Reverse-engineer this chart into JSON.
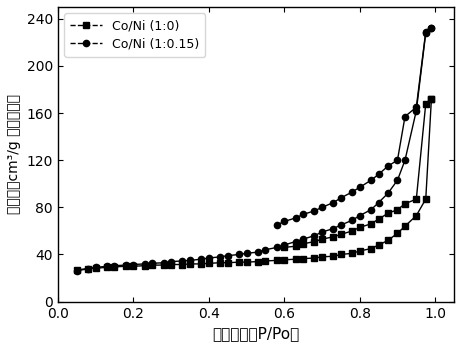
{
  "title": "",
  "xlabel": "相对压力（P/Po）",
  "ylabel": "吸附量（cm³/g 标准状态）",
  "xlim": [
    0.0,
    1.05
  ],
  "ylim": [
    0,
    250
  ],
  "yticks": [
    0,
    40,
    80,
    120,
    160,
    200,
    240
  ],
  "xticks": [
    0.0,
    0.2,
    0.4,
    0.6,
    0.8,
    1.0
  ],
  "series": [
    {
      "label": "Co/Ni (1:0)",
      "marker": "s",
      "adsorption_x": [
        0.05,
        0.08,
        0.1,
        0.13,
        0.15,
        0.18,
        0.2,
        0.23,
        0.25,
        0.28,
        0.3,
        0.33,
        0.35,
        0.38,
        0.4,
        0.43,
        0.45,
        0.48,
        0.5,
        0.53,
        0.55,
        0.58,
        0.6,
        0.63,
        0.65,
        0.68,
        0.7,
        0.73,
        0.75,
        0.78,
        0.8,
        0.83,
        0.85,
        0.875,
        0.9,
        0.92,
        0.95,
        0.975,
        0.99
      ],
      "adsorption_y": [
        27,
        28,
        28.5,
        29,
        29.5,
        30,
        30,
        30.5,
        31,
        31,
        31.5,
        31.5,
        32,
        32,
        32.5,
        33,
        33,
        33.5,
        33.5,
        34,
        34.5,
        35,
        35.5,
        36,
        36.5,
        37,
        38,
        38.5,
        40,
        41,
        43,
        45,
        48,
        52,
        58,
        64,
        73,
        87,
        172
      ],
      "desorption_x": [
        0.99,
        0.975,
        0.95,
        0.92,
        0.9,
        0.875,
        0.85,
        0.83,
        0.8,
        0.78,
        0.75,
        0.73,
        0.7,
        0.68,
        0.65,
        0.63,
        0.6
      ],
      "desorption_y": [
        172,
        168,
        87,
        83,
        78,
        75,
        70,
        66,
        63,
        60,
        57,
        55,
        53,
        51,
        49,
        47,
        46
      ]
    },
    {
      "label": "Co/Ni (1:0.15)",
      "marker": "o",
      "adsorption_x": [
        0.05,
        0.08,
        0.1,
        0.13,
        0.15,
        0.18,
        0.2,
        0.23,
        0.25,
        0.28,
        0.3,
        0.33,
        0.35,
        0.38,
        0.4,
        0.43,
        0.45,
        0.48,
        0.5,
        0.53,
        0.55,
        0.58,
        0.6,
        0.63,
        0.65,
        0.68,
        0.7,
        0.73,
        0.75,
        0.78,
        0.8,
        0.83,
        0.85,
        0.875,
        0.9,
        0.92,
        0.95,
        0.975,
        0.99
      ],
      "adsorption_y": [
        26,
        28,
        29,
        30,
        30.5,
        31,
        31.5,
        32,
        32.5,
        33,
        34,
        34.5,
        35,
        36,
        37,
        38,
        39,
        40,
        41,
        42,
        44,
        46,
        48,
        51,
        53,
        56,
        59,
        62,
        65,
        69,
        73,
        78,
        84,
        92,
        103,
        120,
        162,
        228,
        232
      ],
      "desorption_x": [
        0.99,
        0.975,
        0.95,
        0.92,
        0.9,
        0.875,
        0.85,
        0.83,
        0.8,
        0.78,
        0.75,
        0.73,
        0.7,
        0.68,
        0.65,
        0.63,
        0.6,
        0.58
      ],
      "desorption_y": [
        232,
        229,
        165,
        157,
        120,
        115,
        108,
        103,
        97,
        93,
        88,
        84,
        80,
        77,
        74,
        71,
        68,
        65
      ]
    }
  ]
}
